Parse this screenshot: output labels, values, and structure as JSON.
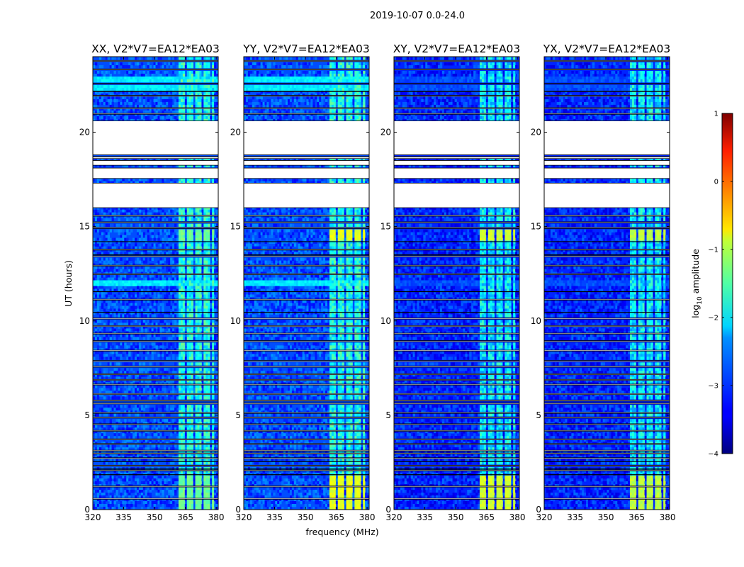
{
  "chart_data": {
    "type": "heatmap",
    "suptitle": "2019-10-07 0.0-24.0",
    "xlabel": "frequency (MHz)",
    "ylabel": "UT (hours)",
    "xlim": [
      320,
      381
    ],
    "ylim": [
      0,
      24
    ],
    "xticks": [
      320,
      335,
      350,
      365,
      380
    ],
    "yticks": [
      0,
      5,
      10,
      15,
      20
    ],
    "colormap": "jet",
    "colorbar": {
      "label_prefix": "log",
      "label_sub": "10",
      "label_suffix": " amplitude",
      "range": [
        -4,
        1
      ],
      "ticks": [
        {
          "value": 1,
          "label": "1"
        },
        {
          "value": 0,
          "label": "0"
        },
        {
          "value": -1,
          "label": "−1"
        },
        {
          "value": -2,
          "label": "−2"
        },
        {
          "value": -3,
          "label": "−3"
        },
        {
          "value": -4,
          "label": "−4"
        }
      ]
    },
    "panels": [
      {
        "title": "XX, V2*V7=EA12*EA03",
        "base_level": -3.0,
        "rfi_level": -2.0,
        "strong_level": -1.6,
        "wide_level": -2.2
      },
      {
        "title": "YY, V2*V7=EA12*EA03",
        "base_level": -3.0,
        "rfi_level": -2.0,
        "strong_level": -1.0,
        "wide_level": -2.2
      },
      {
        "title": "XY, V2*V7=EA12*EA03",
        "base_level": -3.2,
        "rfi_level": -2.2,
        "strong_level": -1.1,
        "wide_level": -3.0
      },
      {
        "title": "YX, V2*V7=EA12*EA03",
        "base_level": -3.2,
        "rfi_level": -2.2,
        "strong_level": -1.2,
        "wide_level": -3.0
      }
    ],
    "rfi_channels_mhz": [
      [
        361.5,
        364.5
      ],
      [
        365.5,
        368.5
      ],
      [
        369.5,
        372.5
      ],
      [
        373.5,
        376.5
      ],
      [
        377.5,
        379
      ]
    ],
    "strong_rfi_hours": [
      [
        0,
        1.8
      ],
      [
        14.2,
        14.8
      ]
    ],
    "wide_band_hours": [
      [
        22.2,
        23.0
      ],
      [
        11.9,
        12.1
      ]
    ],
    "flagged_hours": [
      [
        16.0,
        17.3
      ],
      [
        17.55,
        18.1
      ],
      [
        18.25,
        18.5
      ],
      [
        18.6,
        18.7
      ],
      [
        18.8,
        20.6
      ],
      [
        20.95,
        21.0
      ],
      [
        21.25,
        21.3
      ],
      [
        21.9,
        21.95
      ],
      [
        22.15,
        22.18
      ],
      [
        22.55,
        22.58
      ],
      [
        23.3,
        23.35
      ],
      [
        23.75,
        23.8
      ],
      [
        15.55,
        15.6
      ],
      [
        15.2,
        15.25
      ],
      [
        14.9,
        14.95
      ],
      [
        13.75,
        13.8
      ],
      [
        13.4,
        13.45
      ],
      [
        12.9,
        12.95
      ],
      [
        12.45,
        12.5
      ],
      [
        11.1,
        11.15
      ],
      [
        10.1,
        10.15
      ],
      [
        9.7,
        9.75
      ],
      [
        9.3,
        9.35
      ],
      [
        8.9,
        8.95
      ],
      [
        8.4,
        8.45
      ],
      [
        7.85,
        7.9
      ],
      [
        7.55,
        7.6
      ],
      [
        7.15,
        7.2
      ],
      [
        6.85,
        6.9
      ],
      [
        6.6,
        6.65
      ],
      [
        6.1,
        6.15
      ],
      [
        5.75,
        5.8
      ],
      [
        5.6,
        5.65
      ],
      [
        5.1,
        5.15
      ],
      [
        4.85,
        4.9
      ],
      [
        4.5,
        4.55
      ],
      [
        4.15,
        4.2
      ],
      [
        3.7,
        3.75
      ],
      [
        3.45,
        3.5
      ],
      [
        3.1,
        3.15
      ],
      [
        2.95,
        3.0
      ],
      [
        2.7,
        2.75
      ],
      [
        2.3,
        2.35
      ],
      [
        2.05,
        2.1
      ],
      [
        1.2,
        1.25
      ],
      [
        0.55,
        0.6
      ]
    ],
    "dark_hours": [
      14.2,
      13.5,
      11.55,
      10.45,
      2.55,
      2.15,
      1.85,
      18.7
    ]
  }
}
